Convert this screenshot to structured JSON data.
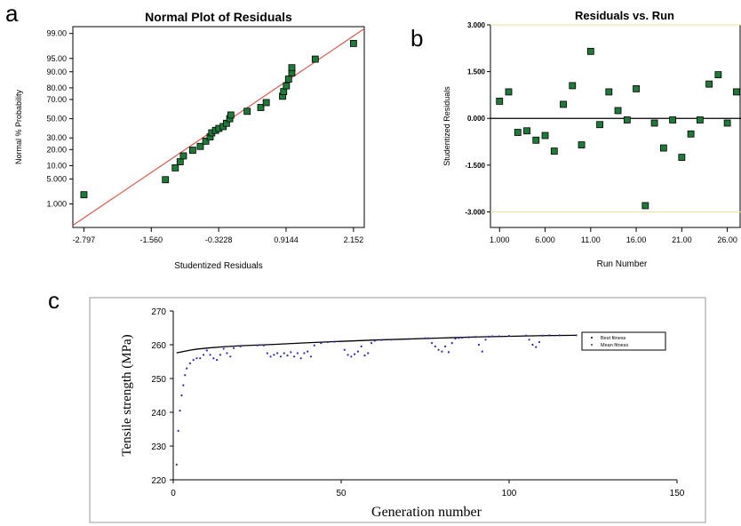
{
  "labels": {
    "a": "a",
    "b": "b",
    "c": "c"
  },
  "chart_data": [
    {
      "type": "scatter",
      "title": "Normal Plot of Residuals",
      "xlabel": "Studentized Residuals",
      "ylabel": "Normal % Probability",
      "x_ticks": [
        "-2.797",
        "-1.560",
        "-0.3228",
        "0.9144",
        "2.152"
      ],
      "x_tick_values": [
        -2.797,
        -1.56,
        -0.3228,
        0.9144,
        2.152
      ],
      "y_ticks": [
        "99.00",
        "95.00",
        "90.00",
        "80.00",
        "70.00",
        "50.00",
        "30.00",
        "20.00",
        "10.00",
        "5.000",
        "1.000"
      ],
      "y_tick_values": [
        99,
        95,
        90,
        80,
        70,
        50,
        30,
        20,
        10,
        5,
        1
      ],
      "xlim": [
        -3.0,
        2.35
      ],
      "points": [
        [
          -2.797,
          1.9
        ],
        [
          -1.3,
          4.8
        ],
        [
          -1.12,
          9.0
        ],
        [
          -1.03,
          12.0
        ],
        [
          -0.97,
          15.5
        ],
        [
          -0.8,
          19.5
        ],
        [
          -0.66,
          22.5
        ],
        [
          -0.56,
          27.0
        ],
        [
          -0.48,
          31.0
        ],
        [
          -0.45,
          35.0
        ],
        [
          -0.38,
          37.5
        ],
        [
          -0.32,
          39.5
        ],
        [
          -0.24,
          41.5
        ],
        [
          -0.18,
          45.0
        ],
        [
          -0.12,
          50.0
        ],
        [
          -0.1,
          54.0
        ],
        [
          0.2,
          58.0
        ],
        [
          0.45,
          62.0
        ],
        [
          0.55,
          67.0
        ],
        [
          0.85,
          73.0
        ],
        [
          0.87,
          77.0
        ],
        [
          0.92,
          81.5
        ],
        [
          0.96,
          86.0
        ],
        [
          1.02,
          89.5
        ],
        [
          1.02,
          91.8
        ],
        [
          1.45,
          94.8
        ],
        [
          2.152,
          98.0
        ]
      ],
      "fit_line": {
        "x": [
          -3.0,
          2.35
        ],
        "p": [
          0.18,
          99.3
        ]
      },
      "marker_color": "#1f7a3a",
      "line_color": "#d9584f"
    },
    {
      "type": "scatter",
      "title": "Residuals vs. Run",
      "xlabel": "Run Number",
      "ylabel": "Studentized Residuals",
      "x_ticks": [
        "1.000",
        "6.000",
        "11.00",
        "16.00",
        "21.00",
        "26.00"
      ],
      "x_tick_values": [
        1,
        6,
        11,
        16,
        21,
        26
      ],
      "y_ticks": [
        "3.000",
        "1.500",
        "0.000",
        "-1.500",
        "-3.000"
      ],
      "y_tick_values": [
        3,
        1.5,
        0,
        -1.5,
        -3
      ],
      "xlim": [
        0,
        27.5
      ],
      "ylim": [
        -3.5,
        3.0
      ],
      "limit_lines": [
        3.0,
        -3.0
      ],
      "limit_line_color": "#e8e29a",
      "x": [
        1,
        2,
        3,
        4,
        5,
        6,
        7,
        8,
        9,
        10,
        11,
        12,
        13,
        14,
        15,
        16,
        17,
        18,
        19,
        20,
        21,
        22,
        23,
        24,
        25,
        26,
        27
      ],
      "y": [
        0.55,
        0.85,
        -0.45,
        -0.4,
        -0.7,
        -0.55,
        -1.05,
        0.45,
        1.05,
        -0.85,
        2.15,
        -0.2,
        0.85,
        0.25,
        -0.05,
        0.95,
        -2.8,
        -0.15,
        -0.95,
        -0.05,
        -1.25,
        -0.5,
        -0.05,
        1.1,
        1.4,
        -0.15,
        0.85
      ],
      "marker_color": "#1f7a3a"
    },
    {
      "type": "line",
      "xlabel": "Generation number",
      "ylabel": "Tensile strength (MPa)",
      "x_ticks": [
        "0",
        "50",
        "100",
        "150"
      ],
      "x_tick_values": [
        0,
        50,
        100,
        150
      ],
      "y_ticks": [
        "220",
        "230",
        "240",
        "250",
        "260",
        "270"
      ],
      "y_tick_values": [
        220,
        230,
        240,
        250,
        260,
        270
      ],
      "xlim": [
        0,
        150
      ],
      "ylim": [
        220,
        270
      ],
      "legend_position": "top-right",
      "series": [
        {
          "name": "Best fitness",
          "x": [
            1,
            2,
            3,
            4,
            5,
            7,
            9,
            11,
            15,
            20,
            25,
            30,
            40,
            50,
            60,
            70,
            80,
            90,
            100,
            110,
            120
          ],
          "values": [
            257.6,
            257.8,
            258.0,
            258.2,
            258.4,
            258.7,
            258.9,
            259.1,
            259.4,
            259.7,
            259.9,
            260.1,
            260.6,
            261.0,
            261.4,
            261.7,
            262.0,
            262.3,
            262.5,
            262.7,
            262.8
          ],
          "color": "#000000"
        },
        {
          "name": "Mean fitness",
          "x": [
            1,
            1.5,
            2,
            2.5,
            3,
            3.5,
            4,
            5,
            6,
            7,
            8,
            9,
            10,
            11,
            12,
            13,
            14,
            15,
            16,
            17,
            18,
            20,
            25,
            27,
            28,
            29,
            30,
            31,
            32,
            33,
            34,
            35,
            36,
            37,
            38,
            39,
            40,
            41,
            42,
            44,
            46,
            48,
            50,
            51,
            52,
            53,
            54,
            55,
            56,
            57,
            58,
            59,
            60,
            62,
            65,
            70,
            75,
            76,
            77,
            78,
            79,
            80,
            81,
            82,
            83,
            84,
            85,
            86,
            88,
            90,
            91,
            92,
            93,
            94,
            95,
            97,
            100,
            105,
            106,
            107,
            108,
            109,
            110,
            112,
            115,
            120
          ],
          "values": [
            224.5,
            234.5,
            240.5,
            245.0,
            248.0,
            251.0,
            253.0,
            254.5,
            255.5,
            256.0,
            256.0,
            257.0,
            258.3,
            257.0,
            256.0,
            255.5,
            257.0,
            258.8,
            257.5,
            256.5,
            259.0,
            259.5,
            259.8,
            259.8,
            257.5,
            256.5,
            257.0,
            257.5,
            256.5,
            257.5,
            256.8,
            257.8,
            256.5,
            257.5,
            256.0,
            257.5,
            258.0,
            256.5,
            259.8,
            260.5,
            260.8,
            260.9,
            261.0,
            258.5,
            257.0,
            256.5,
            257.2,
            258.0,
            259.5,
            256.8,
            257.5,
            260.5,
            261.2,
            261.4,
            261.5,
            261.7,
            261.9,
            261.9,
            260.5,
            259.5,
            258.5,
            258.0,
            259.5,
            257.8,
            260.5,
            261.8,
            262.0,
            262.1,
            262.2,
            262.3,
            260.0,
            258.0,
            261.5,
            262.4,
            262.5,
            262.5,
            262.6,
            262.7,
            261.5,
            260.0,
            259.3,
            260.8,
            262.7,
            262.8,
            262.8,
            262.8
          ],
          "color": "#2a2aa8"
        }
      ]
    }
  ]
}
